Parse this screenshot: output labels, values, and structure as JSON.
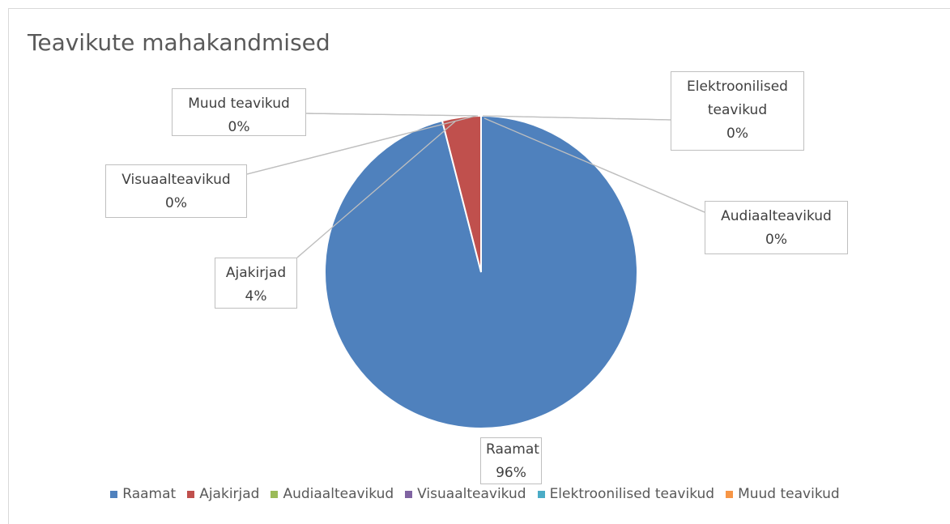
{
  "chart_data": {
    "type": "pie",
    "title": "Teavikute mahakandmised",
    "categories": [
      "Raamat",
      "Ajakirjad",
      "Audiaalteavikud",
      "Visuaalteavikud",
      "Elektroonilised teavikud",
      "Muud teavikud"
    ],
    "values": [
      96,
      4,
      0,
      0,
      0,
      0
    ],
    "value_labels": [
      "96%",
      "4%",
      "0%",
      "0%",
      "0%",
      "0%"
    ],
    "colors": [
      "#4f81bd",
      "#c0504d",
      "#9bbb59",
      "#8064a2",
      "#4bacc6",
      "#f79646"
    ],
    "legend": "bottom"
  }
}
